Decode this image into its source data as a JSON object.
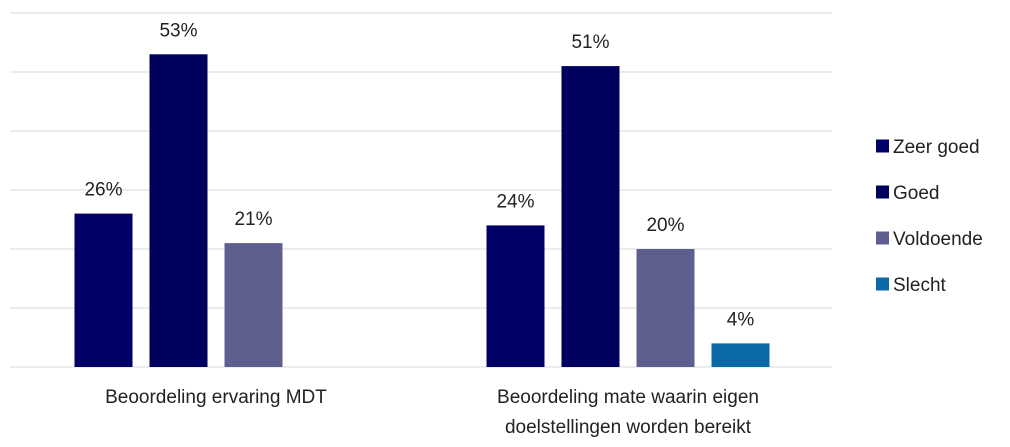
{
  "chart_data": {
    "type": "bar",
    "categories": [
      [
        "Beoordeling ervaring MDT"
      ],
      [
        "Beoordeling mate waarin eigen",
        "doelstellingen worden bereikt"
      ]
    ],
    "series": [
      {
        "name": "Zeer goed",
        "color": "#000066",
        "values": [
          26,
          24
        ]
      },
      {
        "name": "Goed",
        "color": "#00005F",
        "values": [
          53,
          51
        ]
      },
      {
        "name": "Voldoende",
        "color": "#5F5F8F",
        "values": [
          21,
          20
        ]
      },
      {
        "name": "Slecht",
        "color": "#0A6AA6",
        "values": [
          null,
          4
        ]
      }
    ],
    "value_suffix": "%",
    "ylim": [
      0,
      60
    ],
    "grid": true,
    "legend_position": "right",
    "title": "",
    "xlabel": "",
    "ylabel": ""
  }
}
